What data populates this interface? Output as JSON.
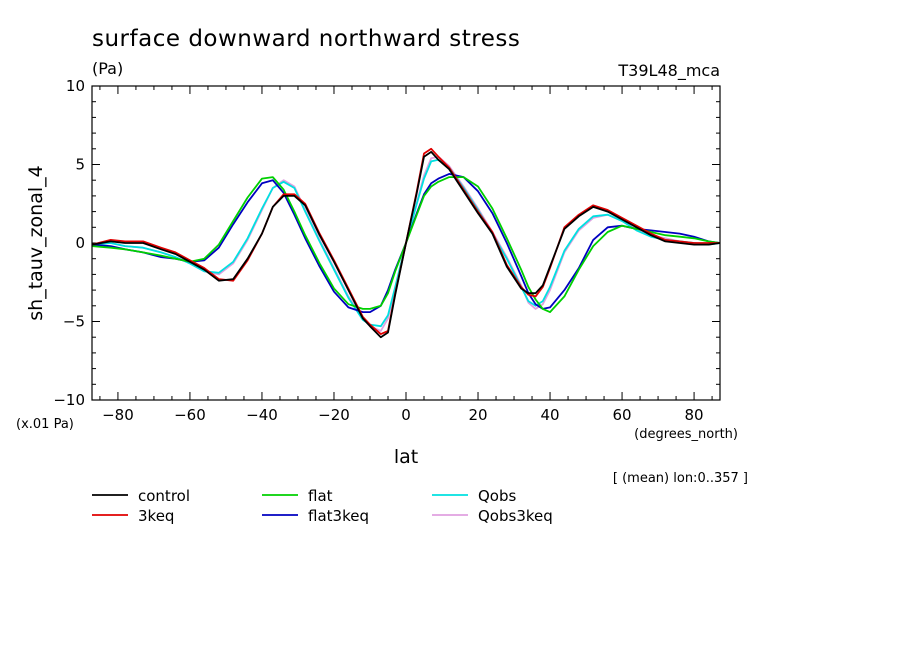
{
  "chart_data": {
    "type": "line",
    "title": "surface downward northward stress",
    "units": "(Pa)",
    "model_label": "T39L48_mca",
    "xlabel": "lat",
    "xunits": "(degrees_north)",
    "ylabel": "sh_tauv_zonal_4",
    "yscale_note": "(x.01 Pa)",
    "mean_note": "[ (mean) lon:0..357 ]",
    "xlim": [
      -87.2,
      87.2
    ],
    "ylim": [
      -10,
      10
    ],
    "xticks": [
      -80,
      -60,
      -40,
      -20,
      0,
      20,
      40,
      60,
      80
    ],
    "xtick_labels": [
      "−80",
      "−60",
      "−40",
      "−20",
      "0",
      "20",
      "40",
      "60",
      "80"
    ],
    "yticks": [
      -10,
      -5,
      0,
      5,
      10
    ],
    "ytick_labels": [
      "−10",
      "−5",
      "0",
      "5",
      "10"
    ],
    "x": [
      -87.2,
      -82,
      -78,
      -73,
      -68,
      -64,
      -60,
      -56,
      -52,
      -48,
      -44,
      -40,
      -37,
      -34,
      -31,
      -28,
      -24,
      -20,
      -16,
      -12,
      -10,
      -7,
      -5,
      -3,
      0,
      3,
      5,
      7,
      9,
      12,
      16,
      20,
      24,
      28,
      32,
      34,
      36,
      38,
      40,
      44,
      48,
      52,
      56,
      60,
      64,
      68,
      72,
      76,
      80,
      84,
      87.2
    ],
    "series": [
      {
        "name": "control",
        "color": "#000000",
        "values": [
          -0.1,
          0.1,
          0.0,
          0.0,
          -0.4,
          -0.7,
          -1.2,
          -1.7,
          -2.4,
          -2.3,
          -1.0,
          0.6,
          2.3,
          3.0,
          3.0,
          2.4,
          0.5,
          -1.2,
          -3.0,
          -4.8,
          -5.3,
          -6.0,
          -5.7,
          -3.3,
          0.0,
          3.2,
          5.5,
          5.8,
          5.3,
          4.7,
          3.3,
          1.9,
          0.6,
          -1.5,
          -2.9,
          -3.2,
          -3.2,
          -2.7,
          -1.5,
          0.9,
          1.7,
          2.3,
          2.0,
          1.5,
          1.0,
          0.5,
          0.1,
          0.0,
          -0.1,
          -0.1,
          0.0
        ]
      },
      {
        "name": "3keq",
        "color": "#e00000",
        "values": [
          -0.1,
          0.2,
          0.1,
          0.1,
          -0.3,
          -0.6,
          -1.1,
          -1.6,
          -2.3,
          -2.4,
          -1.1,
          0.6,
          2.3,
          3.1,
          3.1,
          2.5,
          0.6,
          -1.1,
          -2.9,
          -4.7,
          -5.2,
          -5.8,
          -5.6,
          -3.2,
          0.0,
          3.3,
          5.7,
          6.0,
          5.5,
          4.8,
          3.4,
          2.0,
          0.7,
          -1.4,
          -2.8,
          -3.3,
          -3.4,
          -2.8,
          -1.6,
          1.0,
          1.8,
          2.4,
          2.1,
          1.6,
          1.1,
          0.6,
          0.2,
          0.1,
          0.0,
          0.0,
          0.0
        ]
      },
      {
        "name": "flat",
        "color": "#00d000",
        "values": [
          -0.2,
          -0.3,
          -0.4,
          -0.6,
          -0.8,
          -1.0,
          -1.2,
          -1.0,
          -0.1,
          1.4,
          2.9,
          4.1,
          4.2,
          3.4,
          2.0,
          0.5,
          -1.3,
          -2.9,
          -3.9,
          -4.2,
          -4.2,
          -4.0,
          -3.2,
          -1.8,
          0.0,
          1.8,
          3.0,
          3.6,
          3.9,
          4.2,
          4.2,
          3.6,
          2.2,
          0.3,
          -1.7,
          -2.8,
          -3.6,
          -4.2,
          -4.4,
          -3.4,
          -1.7,
          -0.2,
          0.7,
          1.1,
          0.9,
          0.7,
          0.5,
          0.4,
          0.3,
          0.1,
          0.0
        ]
      },
      {
        "name": "flat3keq",
        "color": "#0000c0",
        "values": [
          -0.1,
          -0.2,
          -0.4,
          -0.6,
          -0.9,
          -1.0,
          -1.2,
          -1.1,
          -0.3,
          1.2,
          2.6,
          3.8,
          4.0,
          3.2,
          1.8,
          0.3,
          -1.5,
          -3.1,
          -4.1,
          -4.4,
          -4.4,
          -4.0,
          -3.0,
          -1.7,
          0.0,
          1.9,
          3.1,
          3.8,
          4.1,
          4.4,
          4.2,
          3.3,
          1.9,
          0.0,
          -2.1,
          -3.2,
          -3.9,
          -4.2,
          -4.1,
          -3.0,
          -1.6,
          0.2,
          1.0,
          1.1,
          0.9,
          0.8,
          0.7,
          0.6,
          0.4,
          0.1,
          0.0
        ]
      },
      {
        "name": "Qobs",
        "color": "#00e0e0",
        "values": [
          -0.1,
          0.0,
          -0.2,
          -0.3,
          -0.6,
          -0.9,
          -1.3,
          -1.8,
          -1.9,
          -1.2,
          0.3,
          2.2,
          3.5,
          3.9,
          3.5,
          2.0,
          0.1,
          -1.7,
          -3.5,
          -4.9,
          -5.2,
          -5.3,
          -4.6,
          -2.8,
          0.0,
          2.5,
          4.1,
          5.2,
          5.3,
          4.8,
          3.5,
          2.1,
          0.6,
          -1.0,
          -2.8,
          -3.7,
          -4.0,
          -3.7,
          -2.8,
          -0.5,
          0.9,
          1.7,
          1.8,
          1.4,
          0.8,
          0.4,
          0.2,
          0.1,
          0.0,
          -0.1,
          0.0
        ]
      },
      {
        "name": "Qobs3keq",
        "color": "#e0a0e0",
        "values": [
          -0.1,
          0.0,
          -0.2,
          -0.3,
          -0.6,
          -0.9,
          -1.3,
          -1.8,
          -2.0,
          -1.3,
          0.2,
          2.1,
          3.5,
          4.0,
          3.6,
          2.1,
          0.2,
          -1.6,
          -3.4,
          -4.8,
          -5.3,
          -5.6,
          -4.8,
          -2.9,
          0.0,
          2.6,
          4.3,
          5.4,
          5.5,
          4.9,
          3.6,
          2.2,
          0.7,
          -0.9,
          -2.7,
          -3.8,
          -4.2,
          -3.9,
          -3.0,
          -0.6,
          0.8,
          1.6,
          1.8,
          1.4,
          0.9,
          0.5,
          0.3,
          0.1,
          0.0,
          -0.1,
          0.0
        ]
      }
    ]
  }
}
